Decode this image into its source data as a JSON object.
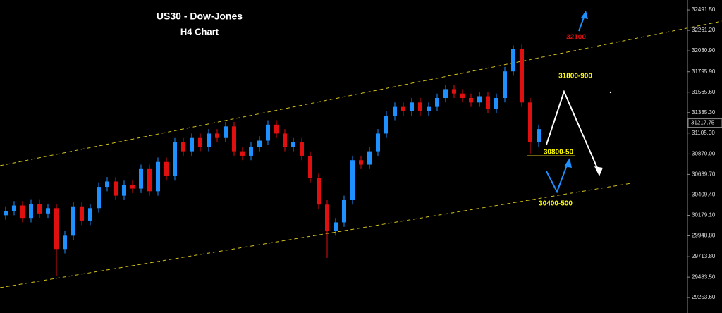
{
  "chart_data": {
    "type": "candlestick",
    "title": "US30 - Dow-Jones",
    "subtitle": "H4 Chart",
    "annotations": [
      "32100",
      "31800-900",
      "30800-50",
      "30400-500"
    ],
    "open": [
      30180,
      30230,
      30290,
      30150,
      30310,
      30200,
      30260,
      29800,
      29950,
      30280,
      30120,
      30260,
      30500,
      30560,
      30400,
      30520,
      30480,
      30700,
      30450,
      30780,
      30620,
      31000,
      30900,
      31050,
      30950,
      31100,
      31050,
      31180,
      30900,
      30850,
      30950,
      31020,
      31200,
      31100,
      30950,
      31000,
      30850,
      30600,
      30300,
      30000,
      30100,
      30350,
      30800,
      30750,
      30900,
      31100,
      31300,
      31400,
      31350,
      31450,
      31350,
      31400,
      31500,
      31600,
      31550,
      31500,
      31450,
      31520,
      31380,
      31500,
      31800,
      32050,
      31450,
      31000
    ],
    "high": [
      30280,
      30340,
      30340,
      30360,
      30360,
      30310,
      30310,
      30000,
      30330,
      30330,
      30310,
      30550,
      30610,
      30610,
      30570,
      30570,
      30750,
      30750,
      30830,
      30830,
      31050,
      31050,
      31100,
      31100,
      31150,
      31150,
      31230,
      31230,
      30950,
      31000,
      31070,
      31250,
      31250,
      31150,
      31050,
      31050,
      30900,
      30650,
      30350,
      30150,
      30400,
      30850,
      30850,
      30950,
      31150,
      31350,
      31450,
      31450,
      31500,
      31500,
      31450,
      31550,
      31650,
      31650,
      31600,
      31550,
      31570,
      31570,
      31550,
      31850,
      32090,
      32100,
      31500,
      31200
    ],
    "low": [
      30130,
      30180,
      30100,
      30100,
      30150,
      30150,
      29500,
      29750,
      29900,
      30070,
      30070,
      30210,
      30450,
      30350,
      30350,
      30430,
      30430,
      30400,
      30400,
      30570,
      30570,
      30850,
      30850,
      30900,
      30900,
      31000,
      31000,
      30850,
      30800,
      30800,
      30900,
      30970,
      31050,
      30900,
      30900,
      30800,
      30550,
      30250,
      29700,
      29950,
      30050,
      30300,
      30700,
      30700,
      30850,
      31050,
      31250,
      31300,
      31300,
      31300,
      31300,
      31350,
      31450,
      31500,
      31450,
      31400,
      31400,
      31330,
      31330,
      31450,
      31750,
      31400,
      30870,
      30950
    ],
    "close": [
      30230,
      30290,
      30150,
      30310,
      30200,
      30260,
      29800,
      29950,
      30280,
      30120,
      30260,
      30500,
      30560,
      30400,
      30520,
      30480,
      30700,
      30450,
      30780,
      30620,
      31000,
      30900,
      31050,
      30950,
      31100,
      31050,
      31180,
      30900,
      30850,
      30950,
      31020,
      31200,
      31100,
      30950,
      31000,
      30850,
      30600,
      30300,
      30000,
      30100,
      30350,
      30800,
      30750,
      30900,
      31100,
      31300,
      31400,
      31350,
      31450,
      31350,
      31400,
      31500,
      31600,
      31550,
      31500,
      31450,
      31520,
      31380,
      31500,
      31800,
      32050,
      31450,
      31000,
      31150
    ],
    "up_color": "#1e90ff",
    "down_color": "#e01010",
    "ylim": [
      29080,
      32603
    ],
    "yticks": [
      {
        "value": 32491.5,
        "label": "32491.50"
      },
      {
        "value": 32261.2,
        "label": "32261.20"
      },
      {
        "value": 32030.9,
        "label": "32030.90"
      },
      {
        "value": 31795.9,
        "label": "31795.90"
      },
      {
        "value": 31565.6,
        "label": "31565.60"
      },
      {
        "value": 31335.3,
        "label": "31335.30"
      },
      {
        "value": 31105,
        "label": "31105.00"
      },
      {
        "value": 30870,
        "label": "30870.00"
      },
      {
        "value": 30639.7,
        "label": "30639.70"
      },
      {
        "value": 30409.4,
        "label": "30409.40"
      },
      {
        "value": 30179.1,
        "label": "30179.10"
      },
      {
        "value": 29948.8,
        "label": "29948.80"
      },
      {
        "value": 29713.8,
        "label": "29713.80"
      },
      {
        "value": 29483.5,
        "label": "29483.50"
      },
      {
        "value": 29253.6,
        "label": "29253.60"
      }
    ],
    "current_price": {
      "value": 31217.75,
      "label": "31217.75"
    }
  }
}
